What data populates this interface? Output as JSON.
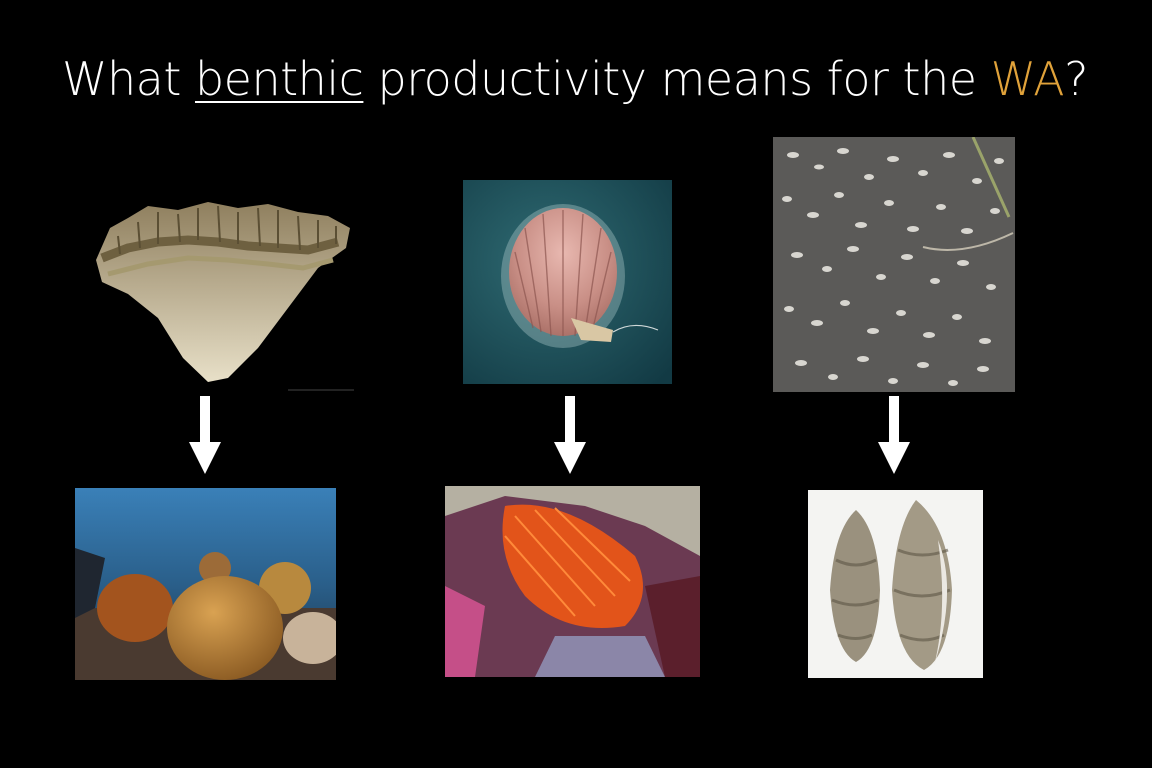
{
  "slide": {
    "title_prefix": "What ",
    "title_underlined": "benthic",
    "title_middle": " productivity means for the ",
    "title_accent": "WA",
    "title_suffix": "?",
    "accent_color": "#e0a23a",
    "background_color": "#000000"
  },
  "columns": [
    {
      "top_image": "fossil coral fragment",
      "bottom_image": "living coral reef"
    },
    {
      "top_image": "scallop shell",
      "bottom_image": "flame scallop"
    },
    {
      "top_image": "beach covered with turritella shells",
      "bottom_image": "two olive snail shells"
    }
  ]
}
